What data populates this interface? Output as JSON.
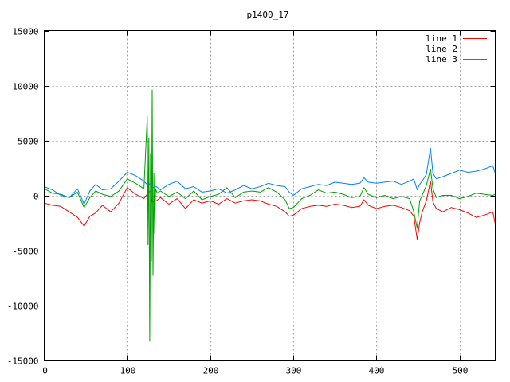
{
  "chart_data": {
    "type": "line",
    "title": "p1400_17",
    "xlabel": "",
    "ylabel": "",
    "xlim": [
      0,
      543
    ],
    "ylim": [
      -15000,
      15000
    ],
    "x_ticks": [
      0,
      100,
      200,
      300,
      400,
      500
    ],
    "y_ticks": [
      -15000,
      -10000,
      -5000,
      0,
      5000,
      10000,
      15000
    ],
    "grid": true,
    "legend_position": "top-right",
    "series": [
      {
        "name": "line 1",
        "color": "#ff0000",
        "x": [
          0,
          10,
          20,
          30,
          40,
          48,
          55,
          62,
          70,
          80,
          90,
          100,
          110,
          120,
          125,
          128,
          130,
          135,
          140,
          150,
          160,
          170,
          180,
          190,
          200,
          210,
          220,
          230,
          240,
          250,
          260,
          270,
          280,
          290,
          295,
          300,
          310,
          320,
          330,
          340,
          350,
          360,
          370,
          380,
          385,
          390,
          400,
          410,
          420,
          430,
          440,
          445,
          449,
          452,
          455,
          460,
          465,
          468,
          472,
          480,
          490,
          500,
          510,
          520,
          530,
          540,
          543
        ],
        "values": [
          -700,
          -900,
          -1000,
          -1500,
          -2000,
          -2800,
          -1900,
          -1600,
          -900,
          -1500,
          -700,
          700,
          100,
          -300,
          200,
          400,
          -600,
          -500,
          -200,
          -800,
          -300,
          -1200,
          -400,
          -700,
          -500,
          -800,
          -300,
          -700,
          -500,
          -400,
          -500,
          -800,
          -1000,
          -1500,
          -1900,
          -1800,
          -1200,
          -1000,
          -900,
          -1000,
          -800,
          -900,
          -1100,
          -1000,
          -400,
          -900,
          -1200,
          -1000,
          -900,
          -1100,
          -1400,
          -1900,
          -4000,
          -2500,
          -1500,
          -500,
          1300,
          -600,
          -1200,
          -1500,
          -1100,
          -1300,
          -1600,
          -2000,
          -1800,
          -1500,
          -2600
        ]
      },
      {
        "name": "line 2",
        "color": "#00a000",
        "x": [
          0,
          10,
          20,
          30,
          40,
          48,
          55,
          62,
          70,
          80,
          90,
          100,
          110,
          120,
          124,
          125,
          126,
          127,
          128,
          129,
          130,
          131,
          132,
          133,
          134,
          136,
          140,
          150,
          160,
          170,
          180,
          190,
          200,
          210,
          220,
          230,
          240,
          250,
          260,
          270,
          280,
          290,
          295,
          300,
          310,
          320,
          330,
          340,
          350,
          360,
          370,
          380,
          385,
          390,
          400,
          410,
          420,
          430,
          440,
          445,
          449,
          452,
          455,
          460,
          465,
          468,
          472,
          480,
          490,
          500,
          510,
          520,
          530,
          540,
          543
        ],
        "values": [
          600,
          200,
          100,
          -200,
          300,
          -1100,
          -200,
          400,
          100,
          -100,
          400,
          1500,
          1100,
          600,
          7200,
          -4500,
          5200,
          -13300,
          3800,
          -6000,
          9600,
          -7300,
          2000,
          -3500,
          600,
          200,
          400,
          -100,
          300,
          -300,
          400,
          -400,
          -100,
          100,
          700,
          -200,
          300,
          400,
          300,
          700,
          300,
          -400,
          -1200,
          -1100,
          -300,
          0,
          500,
          200,
          300,
          100,
          -200,
          -100,
          700,
          100,
          -200,
          0,
          -300,
          -100,
          -300,
          -1500,
          -3000,
          -500,
          0,
          900,
          2400,
          600,
          -200,
          0,
          0,
          -300,
          -100,
          200,
          100,
          0,
          100
        ]
      },
      {
        "name": "line 3",
        "color": "#0080ff",
        "x": [
          0,
          10,
          20,
          30,
          40,
          48,
          55,
          62,
          70,
          80,
          90,
          100,
          110,
          120,
          125,
          128,
          130,
          135,
          140,
          150,
          160,
          170,
          180,
          190,
          200,
          210,
          220,
          230,
          240,
          250,
          260,
          270,
          280,
          290,
          295,
          300,
          310,
          320,
          330,
          340,
          350,
          360,
          370,
          380,
          385,
          390,
          400,
          410,
          420,
          430,
          440,
          445,
          449,
          452,
          455,
          460,
          465,
          468,
          472,
          480,
          490,
          500,
          510,
          520,
          530,
          540,
          543
        ],
        "values": [
          800,
          500,
          0,
          -200,
          600,
          -800,
          400,
          1000,
          500,
          600,
          1300,
          2100,
          1800,
          1300,
          900,
          1100,
          700,
          800,
          500,
          1000,
          1300,
          600,
          800,
          300,
          400,
          600,
          200,
          500,
          900,
          600,
          800,
          1100,
          900,
          800,
          300,
          0,
          600,
          800,
          1000,
          900,
          1200,
          1100,
          1000,
          1100,
          1600,
          1200,
          1100,
          1200,
          1300,
          1000,
          1300,
          1500,
          500,
          1000,
          1300,
          1900,
          4300,
          2000,
          1500,
          1700,
          2000,
          2300,
          2100,
          2200,
          2400,
          2700,
          2000
        ]
      }
    ]
  }
}
